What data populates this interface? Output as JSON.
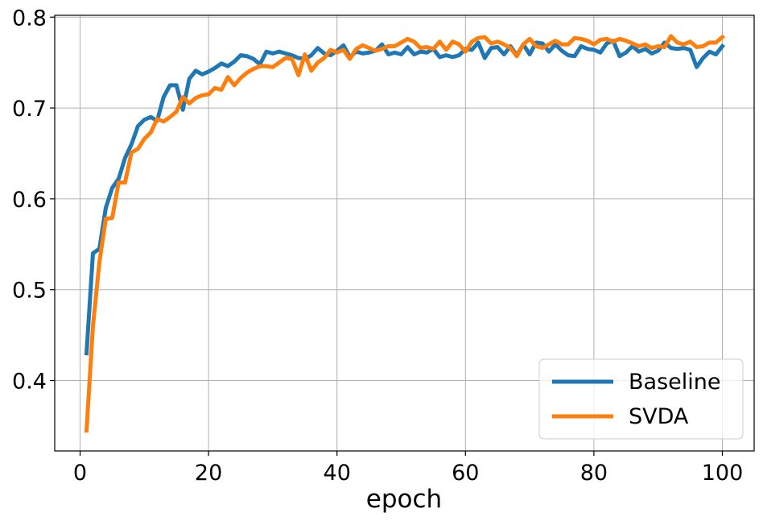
{
  "chart_data": {
    "type": "line",
    "title": "",
    "xlabel": "epoch",
    "ylabel": "",
    "xlim": [
      -3.95,
      104.95
    ],
    "ylim": [
      0.3225,
      0.802
    ],
    "xticks": [
      0,
      20,
      40,
      60,
      80,
      100
    ],
    "xtick_labels": [
      "0",
      "20",
      "40",
      "60",
      "80",
      "100"
    ],
    "yticks": [
      0.4,
      0.5,
      0.6,
      0.7,
      0.8
    ],
    "ytick_labels": [
      "0.4",
      "0.5",
      "0.6",
      "0.7",
      "0.8"
    ],
    "grid": true,
    "legend_position": "lower-right",
    "x": [
      1,
      2,
      3,
      4,
      5,
      6,
      7,
      8,
      9,
      10,
      11,
      12,
      13,
      14,
      15,
      16,
      17,
      18,
      19,
      20,
      21,
      22,
      23,
      24,
      25,
      26,
      27,
      28,
      29,
      30,
      31,
      32,
      33,
      34,
      35,
      36,
      37,
      38,
      39,
      40,
      41,
      42,
      43,
      44,
      45,
      46,
      47,
      48,
      49,
      50,
      51,
      52,
      53,
      54,
      55,
      56,
      57,
      58,
      59,
      60,
      61,
      62,
      63,
      64,
      65,
      66,
      67,
      68,
      69,
      70,
      71,
      72,
      73,
      74,
      75,
      76,
      77,
      78,
      79,
      80,
      81,
      82,
      83,
      84,
      85,
      86,
      87,
      88,
      89,
      90,
      91,
      92,
      93,
      94,
      95,
      96,
      97,
      98,
      99,
      100
    ],
    "series": [
      {
        "name": "Baseline",
        "color": "#1f77b4",
        "values": [
          0.43,
          0.54,
          0.545,
          0.59,
          0.612,
          0.622,
          0.645,
          0.66,
          0.68,
          0.687,
          0.69,
          0.686,
          0.712,
          0.725,
          0.725,
          0.698,
          0.732,
          0.741,
          0.737,
          0.74,
          0.744,
          0.749,
          0.746,
          0.751,
          0.758,
          0.757,
          0.754,
          0.748,
          0.762,
          0.76,
          0.762,
          0.76,
          0.758,
          0.755,
          0.754,
          0.758,
          0.766,
          0.76,
          0.758,
          0.763,
          0.769,
          0.756,
          0.762,
          0.76,
          0.761,
          0.763,
          0.77,
          0.759,
          0.761,
          0.759,
          0.767,
          0.759,
          0.762,
          0.761,
          0.765,
          0.756,
          0.758,
          0.756,
          0.758,
          0.765,
          0.764,
          0.772,
          0.755,
          0.766,
          0.767,
          0.759,
          0.768,
          0.758,
          0.77,
          0.759,
          0.772,
          0.771,
          0.762,
          0.77,
          0.763,
          0.758,
          0.757,
          0.768,
          0.765,
          0.764,
          0.761,
          0.771,
          0.774,
          0.757,
          0.761,
          0.768,
          0.762,
          0.765,
          0.76,
          0.763,
          0.772,
          0.766,
          0.765,
          0.766,
          0.764,
          0.745,
          0.755,
          0.762,
          0.759,
          0.768
        ],
        "data_name": "baseline-line"
      },
      {
        "name": "SVDA",
        "color": "#ff7f0e",
        "values": [
          0.345,
          0.46,
          0.53,
          0.578,
          0.579,
          0.618,
          0.618,
          0.651,
          0.655,
          0.666,
          0.673,
          0.688,
          0.685,
          0.69,
          0.696,
          0.712,
          0.705,
          0.711,
          0.714,
          0.715,
          0.722,
          0.72,
          0.734,
          0.725,
          0.733,
          0.739,
          0.743,
          0.746,
          0.746,
          0.745,
          0.75,
          0.755,
          0.754,
          0.736,
          0.759,
          0.741,
          0.75,
          0.755,
          0.764,
          0.761,
          0.764,
          0.754,
          0.765,
          0.769,
          0.766,
          0.763,
          0.765,
          0.768,
          0.768,
          0.772,
          0.776,
          0.773,
          0.766,
          0.767,
          0.765,
          0.773,
          0.764,
          0.773,
          0.77,
          0.762,
          0.773,
          0.777,
          0.778,
          0.771,
          0.773,
          0.77,
          0.766,
          0.757,
          0.77,
          0.776,
          0.768,
          0.766,
          0.77,
          0.774,
          0.77,
          0.77,
          0.777,
          0.776,
          0.774,
          0.77,
          0.775,
          0.776,
          0.773,
          0.776,
          0.774,
          0.771,
          0.768,
          0.77,
          0.766,
          0.768,
          0.767,
          0.779,
          0.772,
          0.77,
          0.773,
          0.767,
          0.768,
          0.772,
          0.772,
          0.778
        ],
        "data_name": "svda-line"
      }
    ]
  }
}
